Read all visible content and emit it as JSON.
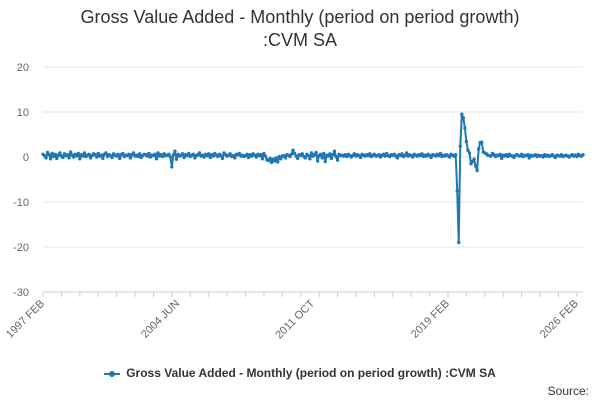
{
  "chart_data": {
    "type": "line",
    "title_lines": [
      "Gross Value Added - Monthly (period on period growth)",
      ":CVM SA"
    ],
    "xlabel": "",
    "ylabel": "",
    "ylim": [
      -30,
      20
    ],
    "yticks": [
      20,
      10,
      0,
      -10,
      -20,
      -30
    ],
    "grid": true,
    "legend": "bottom-center",
    "x_tick_labels": [
      "1997 FEB",
      "2004 JUN",
      "2011 OCT",
      "2019 FEB",
      "2026 FEB"
    ],
    "x_tick_index": [
      0,
      88,
      176,
      264,
      348
    ],
    "series": [
      {
        "name": "Gross Value Added - Monthly (period on period growth) :CVM SA",
        "color": "#1f77b4",
        "values": [
          0.6,
          0.3,
          -0.2,
          1.0,
          0.5,
          -0.4,
          0.8,
          0.1,
          0.6,
          -0.3,
          0.4,
          0.9,
          0.2,
          -0.1,
          0.7,
          0.3,
          0.5,
          -0.2,
          1.1,
          0.4,
          0.0,
          0.6,
          0.3,
          0.8,
          -0.4,
          0.5,
          0.2,
          0.9,
          0.1,
          0.4,
          0.6,
          -0.2,
          0.3,
          0.7,
          0.5,
          0.0,
          0.8,
          0.2,
          0.4,
          -0.3,
          0.6,
          0.9,
          0.1,
          0.5,
          0.3,
          -0.1,
          0.7,
          0.4,
          0.2,
          0.6,
          -0.3,
          0.5,
          0.8,
          0.1,
          0.4,
          0.3,
          0.6,
          -0.2,
          0.5,
          0.9,
          0.2,
          0.4,
          0.1,
          0.7,
          -0.1,
          0.3,
          0.6,
          0.5,
          0.2,
          0.8,
          0.0,
          0.4,
          0.3,
          0.6,
          -0.4,
          0.9,
          0.2,
          0.5,
          0.1,
          0.7,
          0.3,
          0.4,
          0.6,
          0.0,
          -2.2,
          0.5,
          1.3,
          -0.5,
          0.6,
          0.2,
          0.4,
          0.7,
          -0.1,
          0.5,
          0.3,
          0.8,
          0.1,
          0.4,
          0.6,
          -0.2,
          0.3,
          0.5,
          0.9,
          0.2,
          0.4,
          0.0,
          0.6,
          0.3,
          0.7,
          -0.1,
          0.5,
          0.2,
          0.8,
          0.4,
          0.1,
          0.6,
          0.3,
          -0.3,
          0.9,
          0.5,
          0.2,
          0.4,
          0.7,
          0.1,
          0.3,
          -0.2,
          0.6,
          0.5,
          0.8,
          0.2,
          0.4,
          0.1,
          0.3,
          0.6,
          -0.1,
          0.5,
          0.2,
          0.7,
          0.4,
          0.0,
          0.6,
          0.3,
          0.5,
          -0.4,
          0.8,
          0.2,
          -0.6,
          -0.8,
          -0.3,
          -1.2,
          -0.5,
          -0.9,
          -0.2,
          -1.1,
          0.1,
          -0.4,
          0.2,
          0.3,
          -0.2,
          0.5,
          0.4,
          0.1,
          0.6,
          1.5,
          0.8,
          0.2,
          -0.3,
          0.5,
          0.4,
          0.7,
          0.1,
          -0.2,
          0.6,
          0.3,
          -0.4,
          0.9,
          0.2,
          0.5,
          1.0,
          -0.9,
          0.3,
          0.6,
          -0.2,
          0.8,
          -1.0,
          0.4,
          0.2,
          0.7,
          -0.3,
          0.5,
          1.3,
          0.1,
          -0.7,
          0.6,
          0.3,
          0.4,
          0.2,
          0.5,
          0.1,
          0.6,
          0.3,
          0.0,
          0.4,
          0.7,
          0.2,
          0.5,
          0.3,
          -0.1,
          0.6,
          0.4,
          0.2,
          0.5,
          0.3,
          0.7,
          0.1,
          0.4,
          0.6,
          0.2,
          0.3,
          0.5,
          0.0,
          0.4,
          0.6,
          0.2,
          0.8,
          0.3,
          0.1,
          0.5,
          0.4,
          0.6,
          0.2,
          -0.2,
          0.5,
          0.3,
          0.7,
          0.1,
          0.4,
          0.9,
          0.2,
          0.5,
          0.3,
          0.0,
          0.6,
          0.4,
          0.2,
          0.5,
          0.3,
          0.7,
          0.1,
          0.4,
          0.2,
          0.6,
          0.3,
          -0.1,
          0.5,
          0.4,
          0.2,
          0.6,
          0.3,
          0.8,
          0.1,
          0.4,
          0.2,
          0.5,
          0.3,
          0.0,
          0.6,
          0.4,
          0.2,
          0.5,
          -7.5,
          -19.0,
          2.4,
          9.5,
          8.7,
          6.4,
          3.4,
          1.5,
          0.9,
          -1.5,
          -1.0,
          -0.5,
          -2.0,
          -3.0,
          1.8,
          3.2,
          3.3,
          1.1,
          0.9,
          0.7,
          0.4,
          0.3,
          0.2,
          0.8,
          0.5,
          0.1,
          0.4,
          0.3,
          0.6,
          -0.3,
          0.4,
          0.2,
          0.5,
          0.1,
          0.6,
          0.3,
          0.2,
          -0.1,
          0.4,
          0.5,
          0.3,
          0.2,
          0.6,
          0.1,
          0.4,
          0.3,
          0.5,
          -0.2,
          0.4,
          0.2,
          0.3,
          0.5,
          0.1,
          0.4,
          0.2,
          0.3,
          0.0,
          0.5,
          0.2,
          0.4,
          0.1,
          0.3,
          0.5,
          0.2,
          -0.1,
          0.4,
          0.3,
          0.2,
          0.5,
          0.1,
          0.3,
          0.4,
          0.2,
          0.0,
          0.3,
          0.5,
          0.2,
          0.4,
          0.1,
          0.6,
          0.3,
          0.2,
          0.5
        ]
      }
    ]
  },
  "source_label": "Source:"
}
